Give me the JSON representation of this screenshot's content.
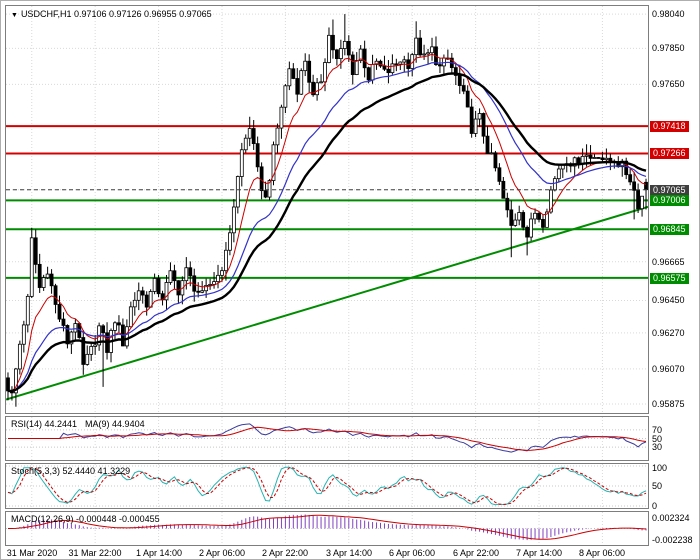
{
  "main_chart": {
    "title": {
      "symbol": "USDCHF,H1",
      "ohlc": "0.97106 0.97126 0.96955 0.97065"
    },
    "price_axis": [
      {
        "label": "0.98040",
        "value": 0.9804,
        "type": "plain"
      },
      {
        "label": "0.97850",
        "value": 0.9785,
        "type": "plain"
      },
      {
        "label": "0.97650",
        "value": 0.9765,
        "type": "plain"
      },
      {
        "label": "0.97418",
        "value": 0.97418,
        "type": "red"
      },
      {
        "label": "0.97266",
        "value": 0.97266,
        "type": "red"
      },
      {
        "label": "0.97065",
        "value": 0.97065,
        "type": "current"
      },
      {
        "label": "0.97006",
        "value": 0.97006,
        "type": "green"
      },
      {
        "label": "0.96845",
        "value": 0.96845,
        "type": "green"
      },
      {
        "label": "0.96665",
        "value": 0.96665,
        "type": "plain"
      },
      {
        "label": "0.96575",
        "value": 0.96575,
        "type": "green"
      },
      {
        "label": "0.96450",
        "value": 0.9645,
        "type": "plain"
      },
      {
        "label": "0.96270",
        "value": 0.9627,
        "type": "plain"
      },
      {
        "label": "0.96070",
        "value": 0.9607,
        "type": "plain"
      },
      {
        "label": "0.95875",
        "value": 0.95875,
        "type": "plain"
      }
    ]
  },
  "time_axis": [
    {
      "label": "31 Mar 2020",
      "idx": 6
    },
    {
      "label": "31 Mar 22:00",
      "idx": 22
    },
    {
      "label": "1 Apr 14:00",
      "idx": 38
    },
    {
      "label": "2 Apr 06:00",
      "idx": 54
    },
    {
      "label": "2 Apr 22:00",
      "idx": 70
    },
    {
      "label": "3 Apr 14:00",
      "idx": 86
    },
    {
      "label": "6 Apr 06:00",
      "idx": 102
    },
    {
      "label": "6 Apr 22:00",
      "idx": 118
    },
    {
      "label": "7 Apr 14:00",
      "idx": 134
    },
    {
      "label": "8 Apr 06:00",
      "idx": 150
    }
  ],
  "indicators": {
    "rsi": {
      "label": "RSI(14) 44.2441",
      "ma_label": "MA(9) 44.9404",
      "levels": [
        "70",
        "50",
        "30"
      ]
    },
    "stoch": {
      "label": "Stoch(5,3,3) 52.4440 41.3229",
      "levels": [
        "100",
        "50",
        "0"
      ]
    },
    "macd": {
      "label": "MACD(12,26,9) -0.000448 -0.000455",
      "scale_top": "0.002324",
      "scale_bottom": "-0.002238"
    }
  },
  "chart_data": {
    "type": "candlestick",
    "symbol": "USDCHF",
    "timeframe": "H1",
    "candle_count": 162,
    "last_ohlc": {
      "open": 0.97106,
      "high": 0.97126,
      "low": 0.96955,
      "close": 0.97065
    },
    "price_axis_range": [
      0.95875,
      0.9804
    ],
    "levels": {
      "resistance": [
        0.97418,
        0.97266
      ],
      "support": [
        0.97006,
        0.96845,
        0.96575
      ],
      "current": 0.97065
    },
    "trendline": {
      "start_price": 0.959,
      "end_price": 0.9697
    },
    "price_path": [
      [
        0,
        0.9602
      ],
      [
        2,
        0.9592
      ],
      [
        4,
        0.9621
      ],
      [
        6,
        0.9645
      ],
      [
        7,
        0.9678
      ],
      [
        9,
        0.9652
      ],
      [
        11,
        0.9663
      ],
      [
        13,
        0.9642
      ],
      [
        16,
        0.9622
      ],
      [
        18,
        0.9634
      ],
      [
        20,
        0.9608
      ],
      [
        22,
        0.9617
      ],
      [
        24,
        0.963
      ],
      [
        26,
        0.9618
      ],
      [
        28,
        0.9635
      ],
      [
        30,
        0.9622
      ],
      [
        32,
        0.9641
      ],
      [
        34,
        0.9651
      ],
      [
        36,
        0.9644
      ],
      [
        38,
        0.9654
      ],
      [
        40,
        0.9647
      ],
      [
        42,
        0.9659
      ],
      [
        44,
        0.9651
      ],
      [
        46,
        0.9661
      ],
      [
        48,
        0.9653
      ],
      [
        50,
        0.9647
      ],
      [
        52,
        0.9654
      ],
      [
        54,
        0.9659
      ],
      [
        56,
        0.967
      ],
      [
        58,
        0.9698
      ],
      [
        60,
        0.9728
      ],
      [
        62,
        0.9742
      ],
      [
        64,
        0.9716
      ],
      [
        66,
        0.9701
      ],
      [
        68,
        0.9728
      ],
      [
        70,
        0.9753
      ],
      [
        72,
        0.9774
      ],
      [
        74,
        0.9763
      ],
      [
        76,
        0.9779
      ],
      [
        78,
        0.9757
      ],
      [
        80,
        0.9768
      ],
      [
        82,
        0.9792
      ],
      [
        84,
        0.9778
      ],
      [
        86,
        0.9788
      ],
      [
        88,
        0.9773
      ],
      [
        90,
        0.9784
      ],
      [
        92,
        0.9769
      ],
      [
        94,
        0.9777
      ],
      [
        96,
        0.9771
      ],
      [
        98,
        0.9774
      ],
      [
        100,
        0.9779
      ],
      [
        102,
        0.9777
      ],
      [
        104,
        0.9788
      ],
      [
        106,
        0.9779
      ],
      [
        108,
        0.9784
      ],
      [
        110,
        0.9774
      ],
      [
        112,
        0.9779
      ],
      [
        114,
        0.9769
      ],
      [
        116,
        0.9758
      ],
      [
        118,
        0.9741
      ],
      [
        120,
        0.9746
      ],
      [
        122,
        0.9729
      ],
      [
        124,
        0.9718
      ],
      [
        126,
        0.9701
      ],
      [
        128,
        0.9686
      ],
      [
        130,
        0.9696
      ],
      [
        132,
        0.9681
      ],
      [
        134,
        0.9694
      ],
      [
        136,
        0.9689
      ],
      [
        138,
        0.9706
      ],
      [
        140,
        0.9719
      ],
      [
        142,
        0.9724
      ],
      [
        144,
        0.9721
      ],
      [
        146,
        0.9727
      ],
      [
        148,
        0.9724
      ],
      [
        150,
        0.9727
      ],
      [
        152,
        0.9721
      ],
      [
        154,
        0.9724
      ],
      [
        156,
        0.9719
      ],
      [
        158,
        0.9713
      ],
      [
        160,
        0.9699
      ],
      [
        162,
        0.97065
      ]
    ],
    "spikes": [
      {
        "i": 2,
        "l": 0.9586
      },
      {
        "i": 6,
        "h": 0.9685
      },
      {
        "i": 24,
        "l": 0.9597
      },
      {
        "i": 61,
        "h": 0.9747
      },
      {
        "i": 82,
        "h": 0.9801
      },
      {
        "i": 85,
        "h": 0.9804
      },
      {
        "i": 103,
        "h": 0.98
      },
      {
        "i": 127,
        "l": 0.9669
      },
      {
        "i": 131,
        "l": 0.967
      },
      {
        "i": 158,
        "l": 0.969
      }
    ],
    "moving_averages": [
      {
        "name": "ma-fast",
        "period": 9
      },
      {
        "name": "ma-mid",
        "period": 22
      },
      {
        "name": "ma-slow",
        "period": 34
      }
    ],
    "indicators": {
      "rsi": {
        "period": 14,
        "value": 44.2441,
        "ma_period": 9,
        "ma_value": 44.9404,
        "levels": [
          70,
          50,
          30
        ]
      },
      "stoch": {
        "k_period": 5,
        "slowing": 3,
        "d_period": 3,
        "k": 52.444,
        "d": 41.3229,
        "levels": [
          100,
          50,
          0
        ]
      },
      "macd": {
        "fast": 12,
        "slow": 26,
        "signal_period": 9,
        "value": -0.000448,
        "signal": -0.000455,
        "scale_max": 0.002324,
        "scale_min": -0.002238
      }
    },
    "colors": {
      "candle": "#000000",
      "resistance": "#d40000",
      "support": "#008c00",
      "trend": "#008c00",
      "current": "#3f3f3f",
      "ma_fast": "#cc0000",
      "ma_mid": "#3232c8",
      "ma_slow": "#000000",
      "rsi": "#3b3b9e",
      "rsi_ma": "#cc0000",
      "stoch_k": "#26b3b3",
      "stoch_d": "#cc0000",
      "macd_hist": "#8040c0",
      "macd_signal": "#cc0000",
      "grid": "#d9d9d9"
    }
  }
}
